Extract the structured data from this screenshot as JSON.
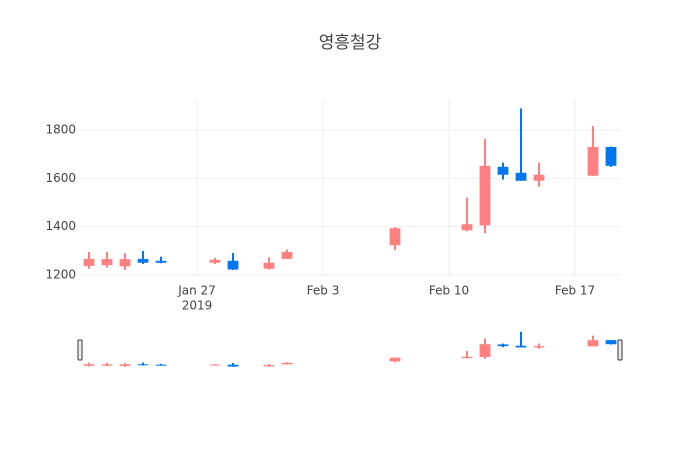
{
  "chart_data": {
    "type": "candlestick",
    "title": "영흥철강",
    "x": [
      "2019-01-21",
      "2019-01-22",
      "2019-01-23",
      "2019-01-24",
      "2019-01-25",
      "2019-01-28",
      "2019-01-29",
      "2019-01-31",
      "2019-02-01",
      "2019-02-07",
      "2019-02-11",
      "2019-02-12",
      "2019-02-13",
      "2019-02-14",
      "2019-02-15",
      "2019-02-18",
      "2019-02-19"
    ],
    "open": [
      1237,
      1240,
      1235,
      1266,
      1258,
      1250,
      1258,
      1225,
      1266,
      1323,
      1385,
      1405,
      1648,
      1623,
      1590,
      1611,
      1730
    ],
    "high": [
      1295,
      1295,
      1290,
      1299,
      1275,
      1270,
      1290,
      1272,
      1305,
      1398,
      1520,
      1763,
      1665,
      1890,
      1665,
      1817,
      1732
    ],
    "low": [
      1225,
      1230,
      1220,
      1245,
      1248,
      1245,
      1220,
      1222,
      1265,
      1303,
      1380,
      1373,
      1595,
      1590,
      1565,
      1610,
      1648
    ],
    "close": [
      1266,
      1265,
      1265,
      1250,
      1250,
      1262,
      1222,
      1250,
      1295,
      1393,
      1410,
      1652,
      1615,
      1590,
      1615,
      1730,
      1652
    ],
    "increasing_color": "#ff8080",
    "decreasing_color": "#0077ee",
    "xlim": [
      "2019-01-20 12:00",
      "2019-02-19 12:00"
    ],
    "xticks": [
      {
        "value": "2019-01-27",
        "label": "Jan 27"
      },
      {
        "value": "2019-02-03",
        "label": "Feb 3"
      },
      {
        "value": "2019-02-10",
        "label": "Feb 10"
      },
      {
        "value": "2019-02-17",
        "label": "Feb 17"
      }
    ],
    "xtick_year": "2019",
    "ylim": [
      1195,
      1925
    ],
    "yticks": [
      1200,
      1400,
      1600,
      1800
    ],
    "grid": true,
    "rangeslider": true
  }
}
